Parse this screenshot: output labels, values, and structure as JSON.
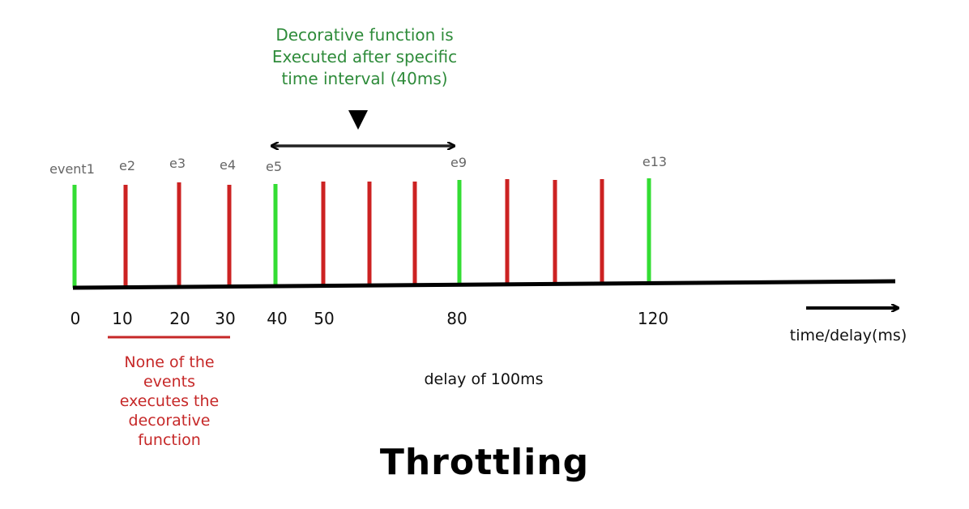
{
  "title": "Throttling",
  "annotation_top": {
    "lines": [
      "Decorative function is",
      "Executed after specific",
      "time interval (40ms)"
    ]
  },
  "annotation_bottom": {
    "lines": [
      "None of the",
      "events",
      "executes the",
      "decorative",
      "function"
    ]
  },
  "axis_label": "time/delay(ms)",
  "delay_text": "delay of 100ms",
  "ticks": [
    "0",
    "10",
    "20",
    "30",
    "40",
    "50",
    "80",
    "120"
  ],
  "event_labels": [
    "event1",
    "e2",
    "e3",
    "e4",
    "e5",
    "e9",
    "e13"
  ],
  "events": [
    {
      "status": "executed"
    },
    {
      "status": "skipped"
    },
    {
      "status": "skipped"
    },
    {
      "status": "skipped"
    },
    {
      "status": "executed"
    },
    {
      "status": "skipped"
    },
    {
      "status": "skipped"
    },
    {
      "status": "skipped"
    },
    {
      "status": "executed"
    },
    {
      "status": "skipped"
    },
    {
      "status": "skipped"
    },
    {
      "status": "skipped"
    },
    {
      "status": "executed"
    }
  ],
  "colors": {
    "executed": "#33dd33",
    "skipped": "#cc2222",
    "note_green": "#2e8b3a",
    "note_red": "#c62828",
    "axis": "#000000"
  }
}
